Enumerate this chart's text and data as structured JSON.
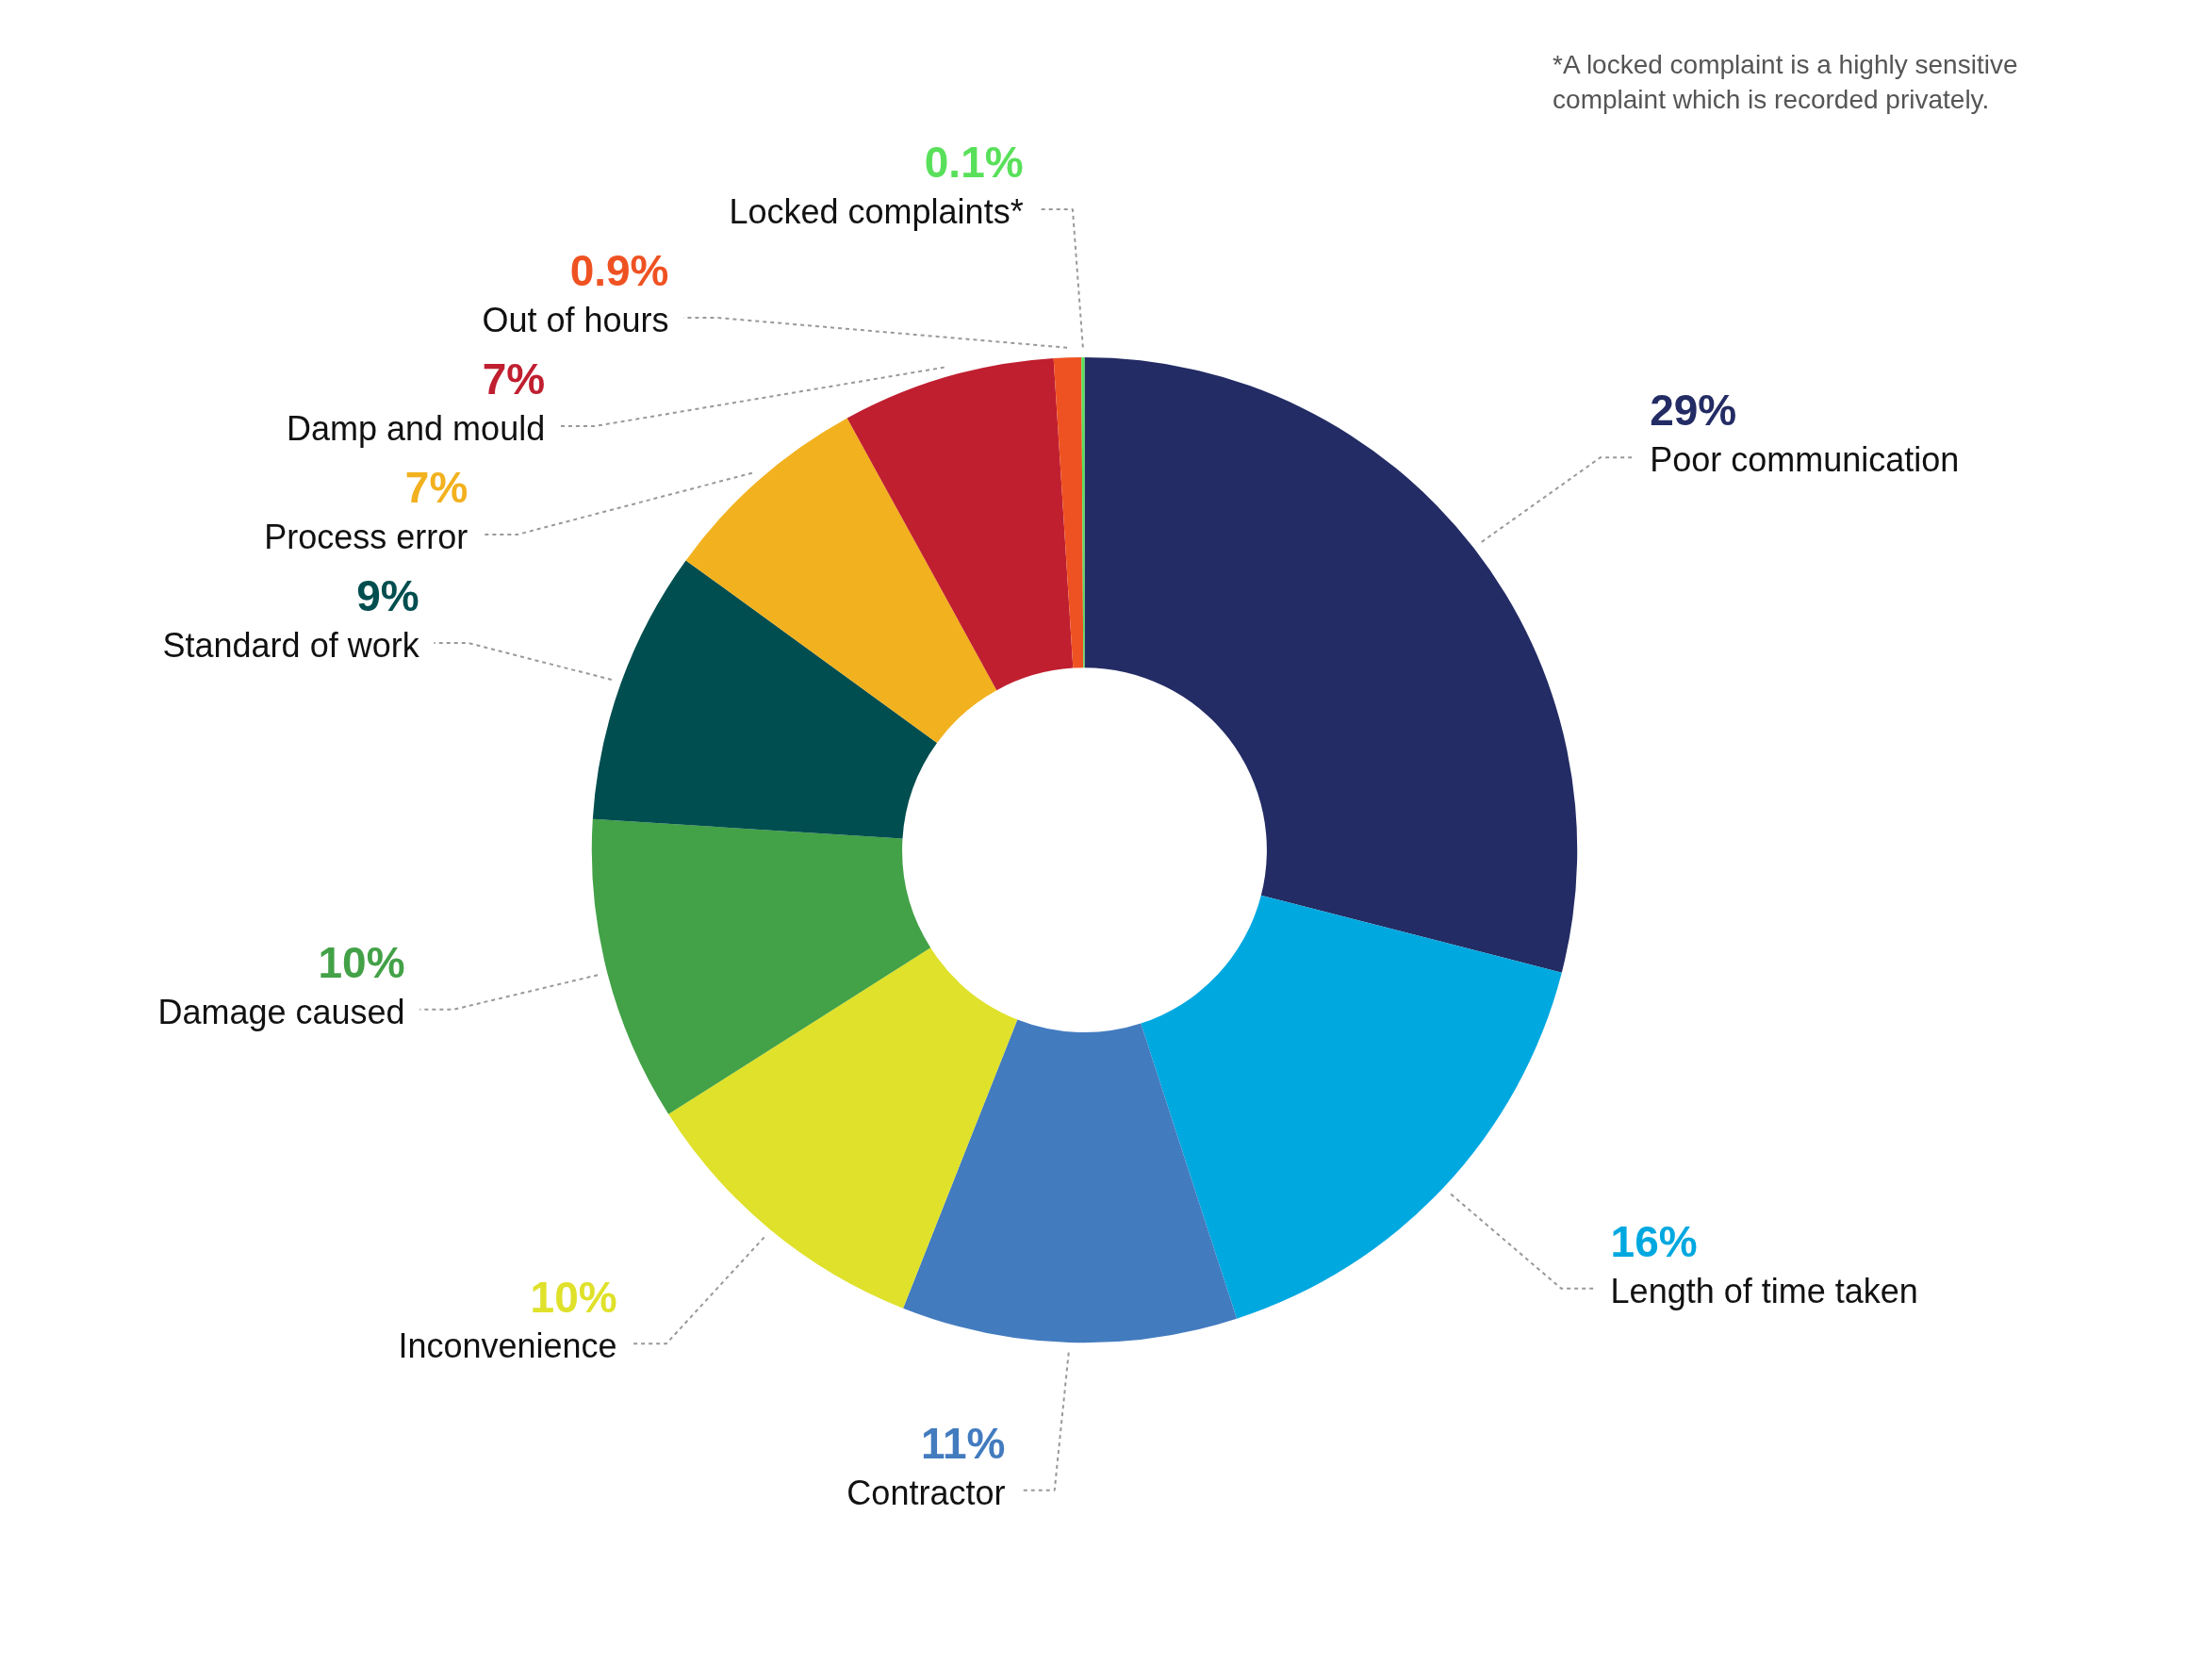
{
  "chart_data": {
    "type": "donut",
    "categories": [
      "Poor communication",
      "Length of time taken",
      "Contractor",
      "Inconvenience",
      "Damage caused",
      "Standard of work",
      "Process error",
      "Damp and mould",
      "Out of hours",
      "Locked complaints*"
    ],
    "values": [
      29,
      16,
      11,
      10,
      10,
      9,
      7,
      7,
      0.9,
      0.1
    ],
    "value_labels": [
      "29%",
      "16%",
      "11%",
      "10%",
      "10%",
      "9%",
      "7%",
      "7%",
      "0.9%",
      "0.1%"
    ],
    "colors": [
      "#232c64",
      "#00a8e0",
      "#437bbf",
      "#dfe12a",
      "#43a147",
      "#004e4f",
      "#f2b11e",
      "#c01f30",
      "#ef5222",
      "#59e05a"
    ],
    "annotations": [
      "*A locked complaint is a highly sensitive complaint which is recorded privately."
    ]
  }
}
